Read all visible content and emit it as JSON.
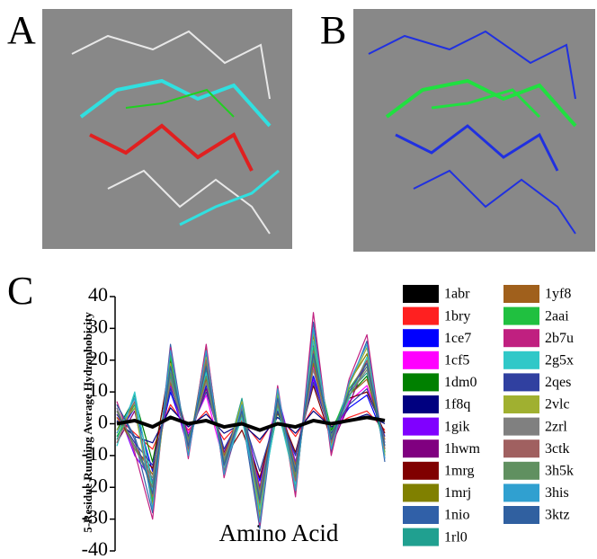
{
  "panel_labels": [
    "A",
    "B",
    "C"
  ],
  "chart_data": {
    "type": "line",
    "y_label": "5-Residue Running Average Hydrophobicity",
    "x_label": "Amino Acid",
    "ylim": [
      -40,
      40
    ],
    "yticks": [
      -40,
      -30,
      -20,
      -10,
      0,
      10,
      20,
      30,
      40
    ],
    "series": [
      {
        "name": "1abr",
        "color": "#000000",
        "values": [
          0,
          1,
          -1,
          2,
          0,
          1,
          -1,
          0,
          -2,
          0,
          -1,
          1,
          0,
          1,
          2,
          1
        ]
      },
      {
        "name": "1bry",
        "color": "#ff2020",
        "values": [
          2,
          -3,
          -8,
          6,
          -2,
          4,
          -5,
          1,
          -6,
          3,
          -4,
          5,
          -1,
          2,
          4,
          -2
        ]
      },
      {
        "name": "1ce7",
        "color": "#0000ff",
        "values": [
          -4,
          5,
          -15,
          10,
          -6,
          12,
          -8,
          3,
          -18,
          6,
          -10,
          15,
          -3,
          5,
          9,
          -5
        ]
      },
      {
        "name": "1cf5",
        "color": "#ff00ff",
        "values": [
          3,
          -6,
          -20,
          14,
          -3,
          9,
          -12,
          5,
          -22,
          8,
          -14,
          18,
          -6,
          7,
          12,
          -4
        ]
      },
      {
        "name": "1dm0",
        "color": "#008000",
        "values": [
          -2,
          8,
          -12,
          18,
          -5,
          15,
          -10,
          2,
          -25,
          4,
          -16,
          22,
          -2,
          9,
          15,
          -8
        ]
      },
      {
        "name": "1f8q",
        "color": "#000080",
        "values": [
          1,
          -4,
          -6,
          5,
          -1,
          3,
          -3,
          0,
          -5,
          2,
          -3,
          4,
          -1,
          1,
          3,
          0
        ]
      },
      {
        "name": "1gik",
        "color": "#8000ff",
        "values": [
          5,
          -10,
          -18,
          12,
          -8,
          20,
          -14,
          6,
          -20,
          9,
          -12,
          14,
          -4,
          11,
          18,
          -6
        ]
      },
      {
        "name": "1hwm",
        "color": "#800080",
        "values": [
          -6,
          4,
          -22,
          16,
          -4,
          11,
          -9,
          4,
          -28,
          7,
          -18,
          25,
          -7,
          6,
          20,
          -9
        ]
      },
      {
        "name": "1mrg",
        "color": "#800000",
        "values": [
          4,
          -8,
          -14,
          20,
          -7,
          18,
          -11,
          -2,
          -17,
          5,
          -9,
          12,
          -5,
          8,
          10,
          -3
        ]
      },
      {
        "name": "1mrj",
        "color": "#808000",
        "values": [
          -3,
          7,
          -25,
          22,
          -9,
          24,
          -15,
          7,
          -30,
          10,
          -20,
          28,
          -8,
          13,
          22,
          -10
        ]
      },
      {
        "name": "1nio",
        "color": "#3060a8",
        "values": [
          6,
          -5,
          -28,
          25,
          -10,
          22,
          -16,
          3,
          -33,
          11,
          -22,
          32,
          -9,
          12,
          26,
          -12
        ]
      },
      {
        "name": "1rl0",
        "color": "#20a090",
        "values": [
          -5,
          9,
          -19,
          15,
          -6,
          17,
          -13,
          8,
          -24,
          6,
          -15,
          20,
          -4,
          10,
          16,
          -7
        ]
      },
      {
        "name": "1yf8",
        "color": "#a0601c",
        "values": [
          2,
          -7,
          -16,
          13,
          -5,
          14,
          -10,
          4,
          -21,
          8,
          -13,
          19,
          -6,
          9,
          14,
          -5
        ]
      },
      {
        "name": "2aai",
        "color": "#20c040",
        "values": [
          -4,
          6,
          -24,
          21,
          -8,
          19,
          -12,
          5,
          -26,
          9,
          -17,
          24,
          -3,
          11,
          19,
          -9
        ]
      },
      {
        "name": "2b7u",
        "color": "#c02080",
        "values": [
          7,
          -9,
          -30,
          24,
          -11,
          25,
          -17,
          6,
          -32,
          12,
          -23,
          35,
          -10,
          14,
          28,
          -11
        ]
      },
      {
        "name": "2g5x",
        "color": "#30c8c8",
        "values": [
          -7,
          10,
          -21,
          17,
          -7,
          16,
          -14,
          2,
          -27,
          5,
          -19,
          26,
          -5,
          8,
          21,
          -8
        ]
      },
      {
        "name": "2qes",
        "color": "#3040a0",
        "values": [
          3,
          -6,
          -13,
          11,
          -4,
          10,
          -8,
          3,
          -15,
          4,
          -10,
          13,
          -3,
          6,
          11,
          -4
        ]
      },
      {
        "name": "2vlc",
        "color": "#a0b030",
        "values": [
          -2,
          5,
          -26,
          19,
          -9,
          21,
          -13,
          7,
          -29,
          10,
          -21,
          29,
          -7,
          12,
          24,
          -10
        ]
      },
      {
        "name": "2zrl",
        "color": "#808080",
        "values": [
          5,
          -8,
          -17,
          14,
          -6,
          13,
          -11,
          4,
          -22,
          7,
          -14,
          17,
          -5,
          9,
          17,
          -6
        ]
      },
      {
        "name": "3ctk",
        "color": "#a06060",
        "values": [
          -6,
          7,
          -23,
          18,
          -8,
          20,
          -15,
          5,
          -25,
          8,
          -18,
          23,
          -6,
          10,
          20,
          -8
        ]
      },
      {
        "name": "3h5k",
        "color": "#609060",
        "values": [
          4,
          -7,
          -20,
          16,
          -5,
          15,
          -12,
          3,
          -23,
          6,
          -16,
          21,
          -4,
          9,
          18,
          -7
        ]
      },
      {
        "name": "3his",
        "color": "#30a0d0",
        "values": [
          -3,
          8,
          -27,
          23,
          -10,
          23,
          -16,
          6,
          -31,
          11,
          -21,
          30,
          -8,
          13,
          25,
          -11
        ]
      },
      {
        "name": "3ktz",
        "color": "#3060a0",
        "values": [
          6,
          -4,
          -22,
          18,
          -7,
          18,
          -13,
          4,
          -24,
          8,
          -15,
          22,
          -5,
          10,
          19,
          -7
        ]
      }
    ]
  }
}
